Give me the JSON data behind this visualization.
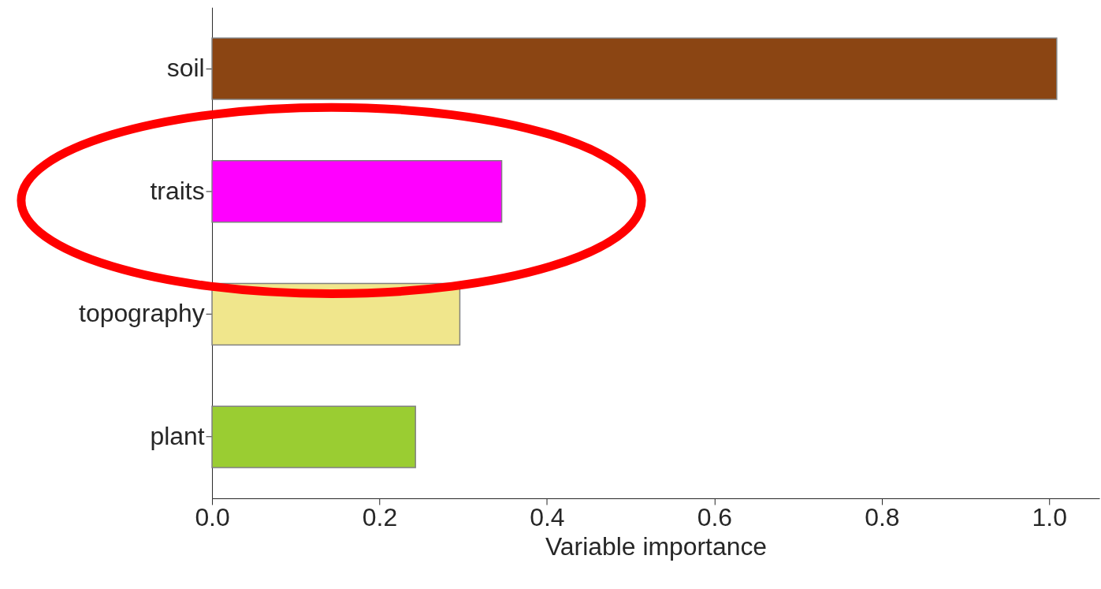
{
  "chart_data": {
    "type": "bar",
    "orientation": "horizontal",
    "xlabel": "Variable importance",
    "categories": [
      "soil",
      "traits",
      "topography",
      "plant"
    ],
    "values": [
      1.009,
      0.346,
      0.296,
      0.243
    ],
    "colors": [
      "#8b4513",
      "#ff00ff",
      "#f0e68c",
      "#9acd32"
    ],
    "xlim": [
      0,
      1.06
    ],
    "xticks": [
      {
        "value": 0,
        "label": "0.0"
      },
      {
        "value": 0.2,
        "label": "0.2"
      },
      {
        "value": 0.4,
        "label": "0.4"
      },
      {
        "value": 0.6,
        "label": "0.6"
      },
      {
        "value": 0.8,
        "label": "0.8"
      },
      {
        "value": 1.0,
        "label": "1.0"
      }
    ],
    "grid": false
  }
}
